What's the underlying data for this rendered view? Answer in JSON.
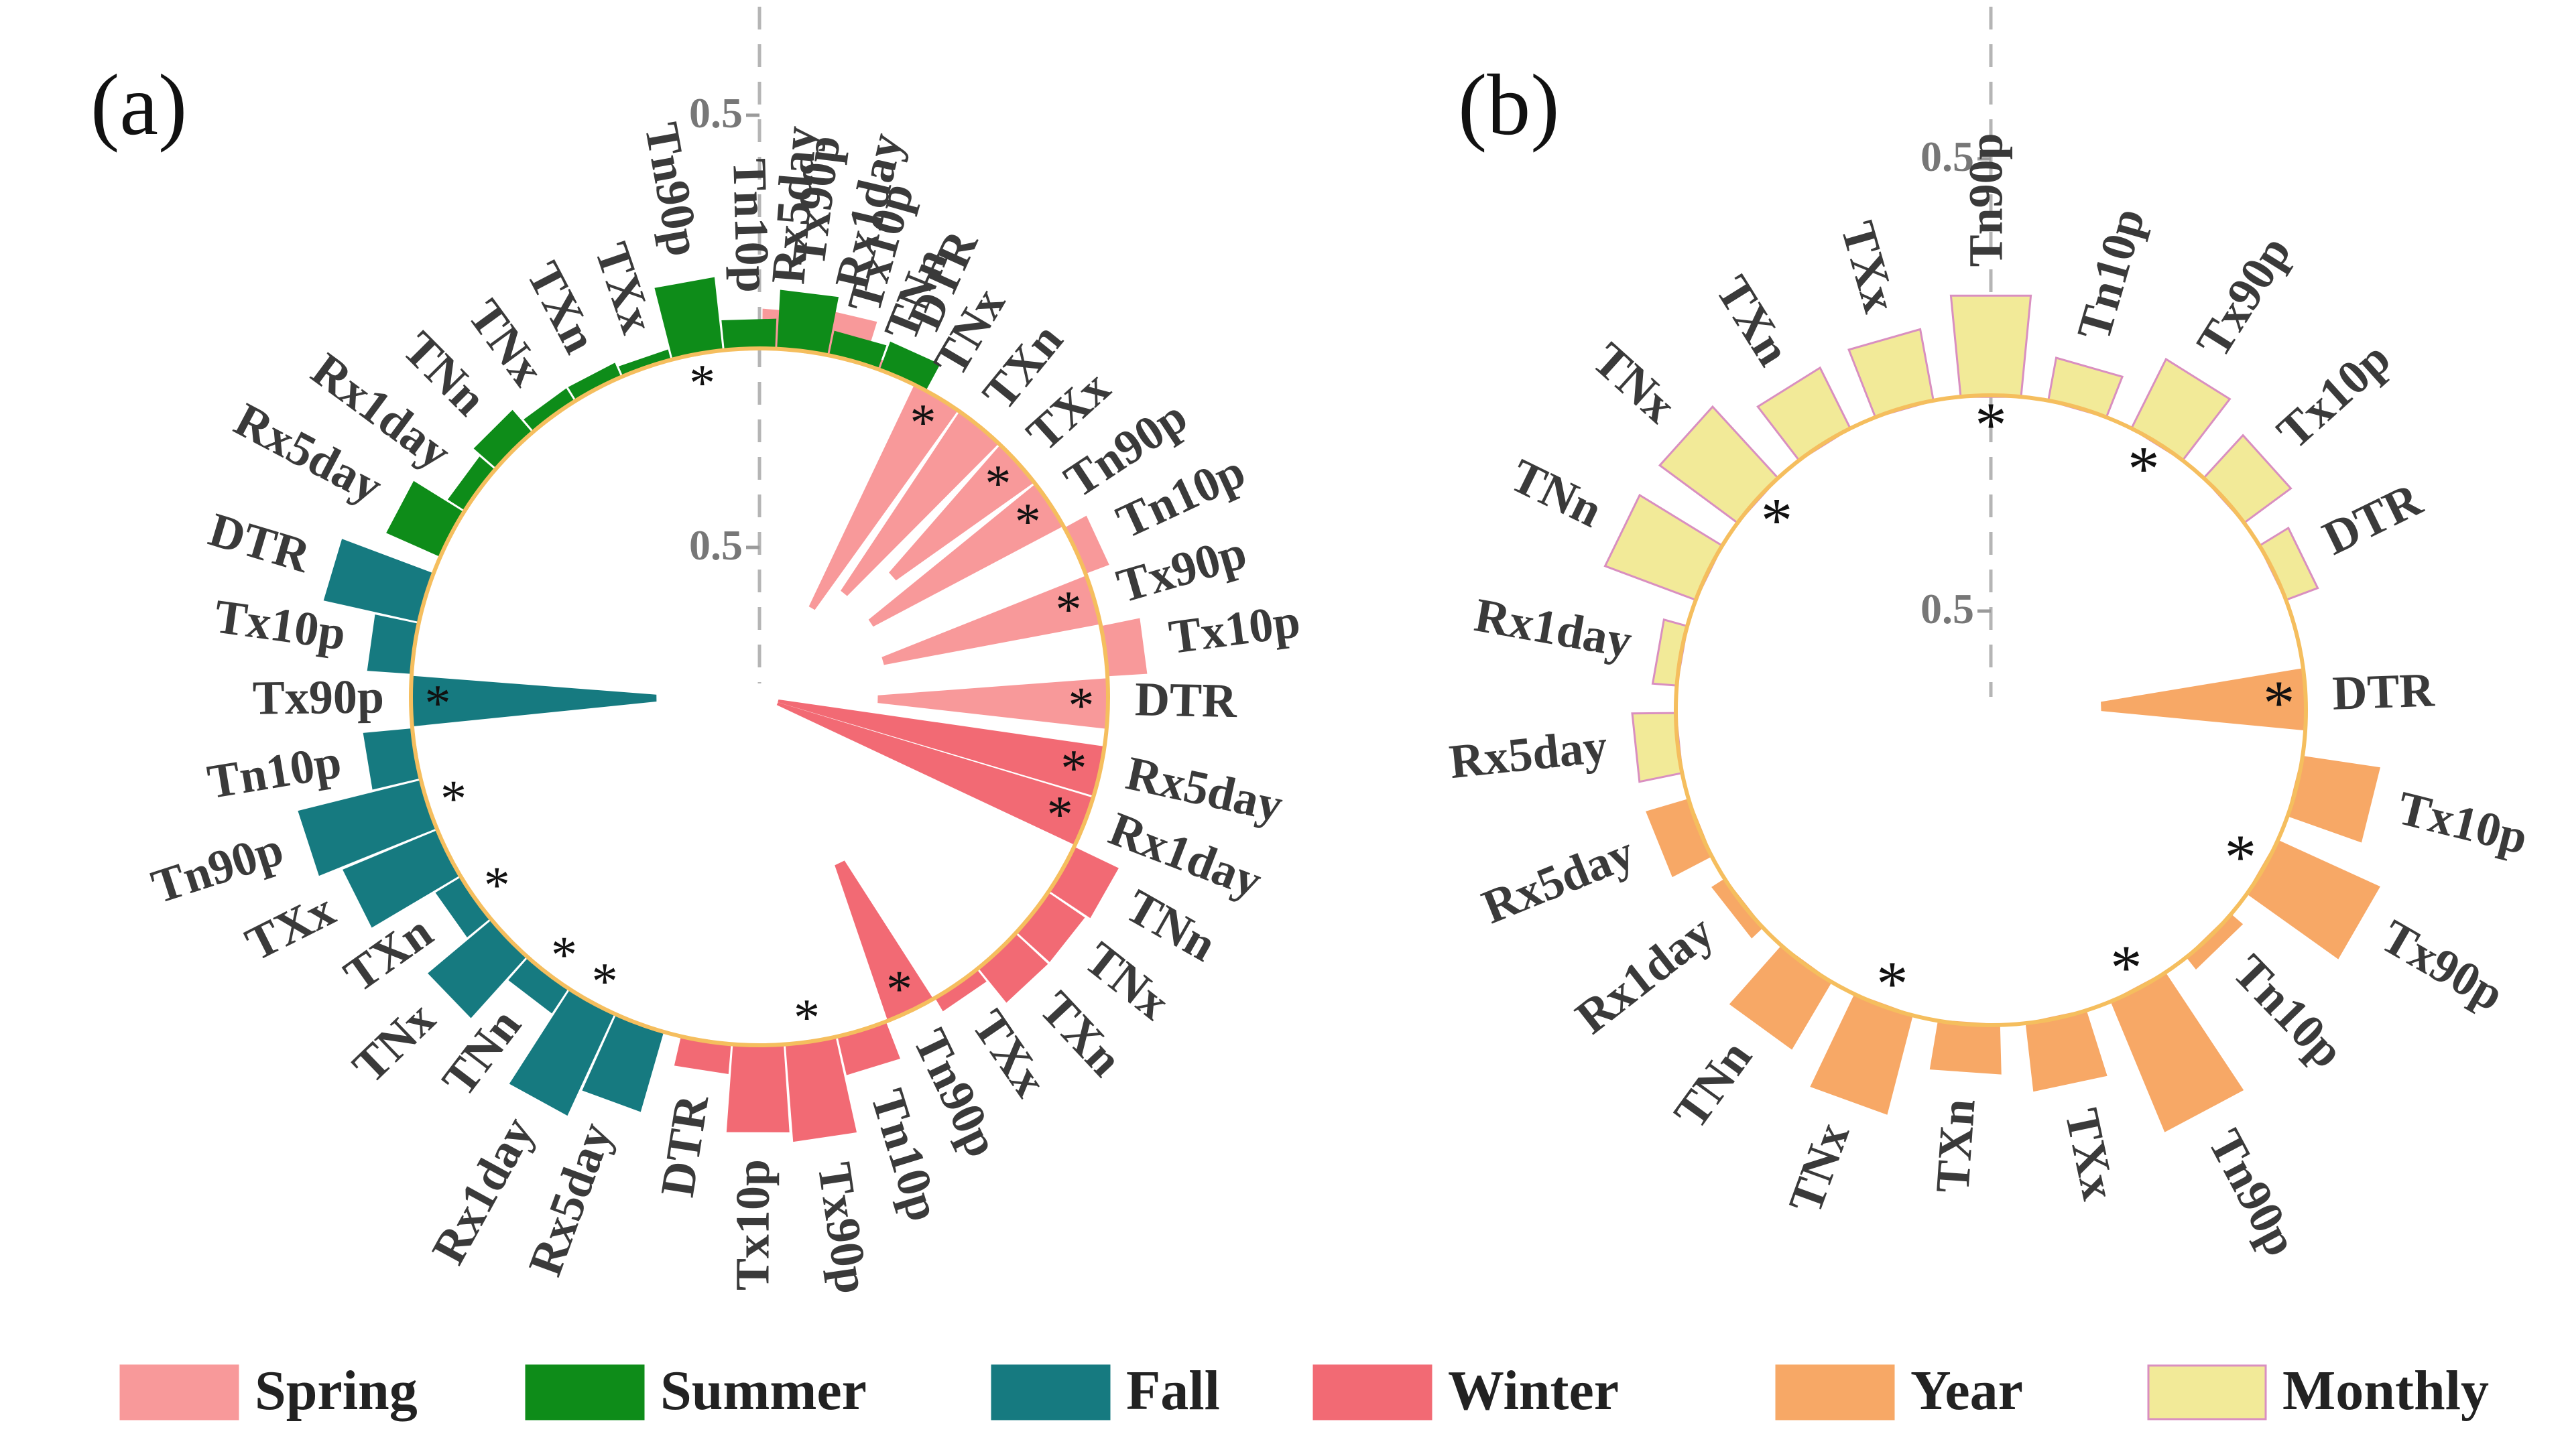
{
  "chart_data": [
    {
      "type": "radial-bar",
      "title": "(a)",
      "tick_label": "0.5",
      "value_range": [
        0,
        0.75
      ],
      "groups": [
        {
          "name": "Spring",
          "color": "#F8999A",
          "categories": [
            "Rx5day",
            "Rx1day",
            "TNn",
            "TNx",
            "TXn",
            "TXx",
            "Tn90p",
            "Tn10p",
            "Tx90p",
            "Tx10p",
            "DTR"
          ],
          "values": [
            0.08,
            0.09,
            0.02,
            0.48,
            0.42,
            0.33,
            0.42,
            0.05,
            0.43,
            0.08,
            0.45
          ],
          "significant": [
            false,
            false,
            false,
            true,
            false,
            true,
            true,
            false,
            true,
            false,
            true
          ]
        },
        {
          "name": "Winter",
          "color": "#F26A74",
          "categories": [
            "Rx5day",
            "Rx1day",
            "TNn",
            "TNx",
            "TXn",
            "TXx",
            "Tn90p",
            "Tn10p",
            "Tx90p",
            "Tx10p",
            "DTR"
          ],
          "values": [
            0.65,
            0.75,
            0.1,
            0.09,
            0.09,
            0.03,
            0.32,
            0.08,
            0.2,
            0.18,
            0.06
          ],
          "significant": [
            true,
            true,
            false,
            false,
            false,
            false,
            true,
            false,
            true,
            false,
            false
          ]
        },
        {
          "name": "Fall",
          "color": "#167A80",
          "categories": [
            "Rx5day",
            "Rx1day",
            "TNn",
            "TNx",
            "TXn",
            "TXx",
            "Tn90p",
            "Tn10p",
            "Tx90p",
            "Tx10p",
            "DTR"
          ],
          "values": [
            0.17,
            0.23,
            0.06,
            0.17,
            0.06,
            0.21,
            0.26,
            0.1,
            0.48,
            0.09,
            0.2
          ],
          "significant": [
            false,
            true,
            true,
            false,
            true,
            false,
            true,
            false,
            true,
            false,
            false
          ]
        },
        {
          "name": "Summer",
          "color": "#0E8C19",
          "categories": [
            "Rx5day",
            "Rx1day",
            "TNn",
            "TNx",
            "TXn",
            "TXx",
            "Tn90p",
            "Tn10p",
            "Tx90p",
            "Tx10p",
            "DTR"
          ],
          "values": [
            0.12,
            0.04,
            0.06,
            0.03,
            0.03,
            0.02,
            0.15,
            0.06,
            0.12,
            0.05,
            0.06
          ],
          "significant": [
            false,
            false,
            false,
            false,
            false,
            false,
            true,
            false,
            false,
            false,
            false
          ]
        }
      ]
    },
    {
      "type": "radial-bar",
      "title": "(b)",
      "tick_label": "0.5",
      "value_range": [
        0,
        0.75
      ],
      "groups": [
        {
          "name": "Year",
          "color": "#F7A866",
          "categories": [
            "DTR",
            "Tx10p",
            "Tx90p",
            "Tn10p",
            "Tn90p",
            "TXx",
            "TXn",
            "TNx",
            "TNn",
            "Rx1day",
            "Rx5day"
          ],
          "values": [
            0.4,
            0.16,
            0.23,
            0.03,
            0.29,
            0.14,
            0.1,
            0.21,
            0.16,
            0.03,
            0.09
          ],
          "significant": [
            true,
            false,
            true,
            false,
            true,
            false,
            false,
            true,
            false,
            false,
            false
          ]
        },
        {
          "name": "Monthly",
          "color": "#F2EA98",
          "categories": [
            "Rx5day",
            "Rx1day",
            "TNn",
            "TNx",
            "TXn",
            "TXx",
            "Tn90p",
            "Tn10p",
            "Tx90p",
            "Tx10p",
            "DTR"
          ],
          "values": [
            0.09,
            0.05,
            0.2,
            0.2,
            0.14,
            0.15,
            0.21,
            0.09,
            0.16,
            0.12,
            0.07
          ],
          "significant": [
            false,
            false,
            false,
            true,
            false,
            false,
            true,
            false,
            true,
            false,
            false
          ]
        }
      ]
    }
  ],
  "legend": [
    {
      "label": "Spring",
      "color": "#F8999A"
    },
    {
      "label": "Summer",
      "color": "#0E8C19"
    },
    {
      "label": "Fall",
      "color": "#167A80"
    },
    {
      "label": "Winter",
      "color": "#F26A74"
    },
    {
      "label": "Year",
      "color": "#F7A866"
    },
    {
      "label": "Monthly",
      "color": "#F2EA98"
    }
  ],
  "significance_marker": "*",
  "ring_color": "#F5BE5E"
}
